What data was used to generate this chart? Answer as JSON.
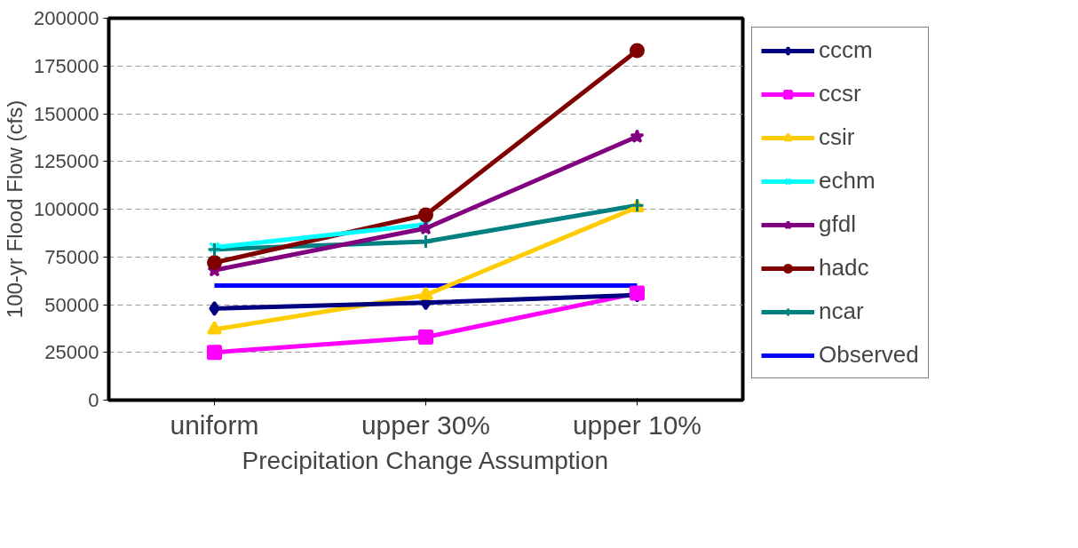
{
  "chart_data": {
    "type": "line",
    "xlabel": "Precipitation Change Assumption",
    "ylabel": "100-yr Flood Flow (cfs)",
    "categories": [
      "uniform",
      "upper 30%",
      "upper 10%"
    ],
    "ylim": [
      0,
      200000
    ],
    "yticks": [
      0,
      25000,
      50000,
      75000,
      100000,
      125000,
      150000,
      175000,
      200000
    ],
    "grid": "y",
    "legend": "right",
    "series": [
      {
        "name": "cccm",
        "color": "#000080",
        "marker": "diamond",
        "values": [
          48000,
          51000,
          55000
        ]
      },
      {
        "name": "ccsr",
        "color": "#ff00ff",
        "marker": "square",
        "values": [
          25000,
          33000,
          56000
        ]
      },
      {
        "name": "csir",
        "color": "#ffcc00",
        "marker": "triangle",
        "values": [
          37000,
          55000,
          101000
        ]
      },
      {
        "name": "echm",
        "color": "#00ffff",
        "marker": "x",
        "values": [
          80000,
          92000,
          null
        ]
      },
      {
        "name": "gfdl",
        "color": "#800080",
        "marker": "star",
        "values": [
          68000,
          90000,
          138000
        ]
      },
      {
        "name": "hadc",
        "color": "#800000",
        "marker": "circle",
        "values": [
          72000,
          97000,
          183000
        ]
      },
      {
        "name": "ncar",
        "color": "#008080",
        "marker": "cross",
        "values": [
          79000,
          83000,
          102000
        ]
      },
      {
        "name": "Observed",
        "color": "#0000ff",
        "marker": "none",
        "values": [
          60000,
          60000,
          60000
        ]
      }
    ]
  }
}
